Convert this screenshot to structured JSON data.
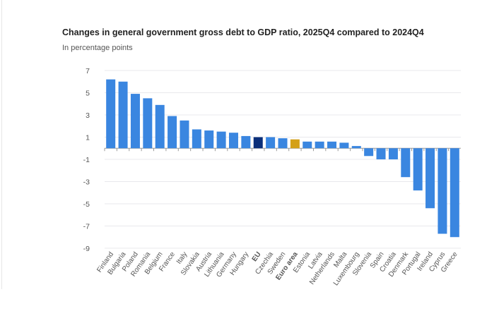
{
  "chart_data": {
    "type": "bar",
    "title": "Changes in general government gross debt to GDP ratio, 2025Q4 compared to 2024Q4",
    "subtitle": "In percentage points",
    "xlabel": "",
    "ylabel": "",
    "ylim": [
      -9,
      7
    ],
    "yticks": [
      7,
      5,
      3,
      1,
      -1,
      -3,
      -5,
      -7,
      -9
    ],
    "grid": true,
    "categories": [
      "Finland",
      "Bulgaria",
      "Poland",
      "Romania",
      "Belgium",
      "France",
      "Italy",
      "Slovakia",
      "Austria",
      "Lithuania",
      "Germany",
      "Hungary",
      "EU",
      "Czechia",
      "Sweden",
      "Euro area",
      "Estonia",
      "Latvia",
      "Netherlands",
      "Malta",
      "Luxembourg",
      "Slovenia",
      "Spain",
      "Croatia",
      "Denmark",
      "Portugal",
      "Ireland",
      "Cyprus",
      "Greece"
    ],
    "values": [
      6.2,
      6.0,
      4.9,
      4.5,
      3.9,
      2.9,
      2.5,
      1.7,
      1.6,
      1.5,
      1.4,
      1.1,
      1.0,
      1.0,
      0.9,
      0.8,
      0.6,
      0.6,
      0.6,
      0.5,
      0.2,
      -0.7,
      -1.0,
      -1.0,
      -2.6,
      -3.8,
      -5.4,
      -7.7,
      -8.0
    ],
    "highlight": {
      "EU": "#0b2f7a",
      "Euro area": "#d4a017"
    },
    "colors": {
      "default": "#3a86e0"
    }
  }
}
